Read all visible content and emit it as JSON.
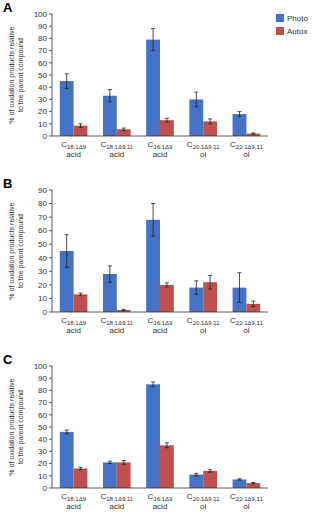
{
  "chart_data": [
    {
      "type": "bar",
      "title": "A",
      "ylabel": "% of oxidation products relative\nto the parent compound",
      "categories": [
        "C18:1Δ9\nacid",
        "C18:1Δ9,11\nacid",
        "C16:1Δ9\nacid",
        "C20:1Δ9,11\nol",
        "C22:1Δ9,11\nol"
      ],
      "series": [
        {
          "name": "Photo",
          "color": "#4472C4",
          "values": [
            45,
            33,
            79,
            30,
            18
          ],
          "errors": [
            6,
            5,
            9,
            6,
            2
          ]
        },
        {
          "name": "Autox",
          "color": "#C0504D",
          "values": [
            8.5,
            5.5,
            13,
            12,
            2
          ],
          "errors": [
            1.5,
            1,
            1.5,
            2,
            0.5
          ]
        }
      ],
      "ylim": [
        0,
        100
      ],
      "yticks": [
        0,
        10,
        20,
        30,
        40,
        50,
        60,
        70,
        80,
        90,
        100
      ],
      "grid": false,
      "legend": "right"
    },
    {
      "type": "bar",
      "title": "B",
      "ylabel": "% of oxidation products relative\nto the parent compound",
      "categories": [
        "C18:1Δ9\nacid",
        "C18:1Δ9,11\nacid",
        "C16:1Δ9\nacid",
        "C20:1Δ9,11\nol",
        "C22:1Δ9,11\nol"
      ],
      "series": [
        {
          "color": "#4472C4",
          "values": [
            45,
            28,
            68,
            18,
            18
          ],
          "errors": [
            12,
            6,
            12,
            5,
            11
          ]
        },
        {
          "color": "#C0504D",
          "values": [
            13,
            1.5,
            20,
            22,
            6
          ],
          "errors": [
            1,
            0.5,
            1.5,
            5,
            2
          ]
        }
      ],
      "ylim": [
        0,
        90
      ],
      "yticks": [
        0,
        10,
        20,
        30,
        40,
        50,
        60,
        70,
        80,
        90
      ],
      "grid": false,
      "legend": false
    },
    {
      "type": "bar",
      "title": "C",
      "ylabel": "% of oxidation products relative\nto the parent compound",
      "categories": [
        "C18:1Δ9\nacid",
        "C18:1Δ9,11\nacid",
        "C16:1Δ9\nacid",
        "C20:1Δ9,11\nol",
        "C22:1Δ9,11\nol"
      ],
      "series": [
        {
          "color": "#4472C4",
          "values": [
            46,
            21,
            85,
            11,
            7
          ],
          "errors": [
            1.5,
            1,
            2,
            1,
            0.5
          ]
        },
        {
          "color": "#C0504D",
          "values": [
            16,
            21,
            35,
            14,
            4
          ],
          "errors": [
            1,
            1.5,
            2,
            1,
            0.5
          ]
        }
      ],
      "ylim": [
        0,
        100
      ],
      "yticks": [
        0,
        10,
        20,
        30,
        40,
        50,
        60,
        70,
        80,
        90,
        100
      ],
      "grid": false,
      "legend": false
    }
  ]
}
